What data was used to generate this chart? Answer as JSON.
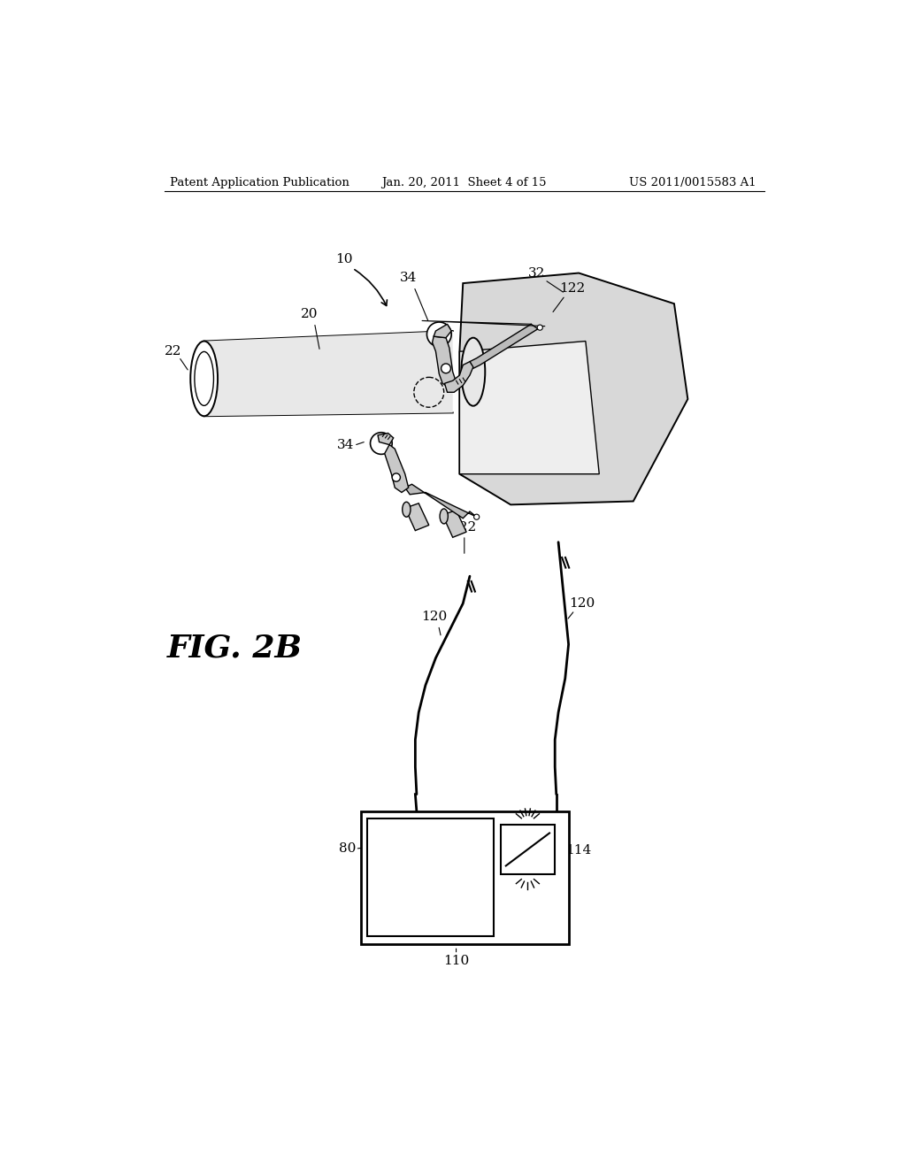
{
  "bg_color": "#ffffff",
  "header_left": "Patent Application Publication",
  "header_center": "Jan. 20, 2011  Sheet 4 of 15",
  "header_right": "US 2011/0015583 A1",
  "fig_label": "FIG. 2B",
  "tube_gray": "#e8e8e8",
  "body_gray": "#d8d8d8",
  "clip_gray": "#c8c8c8",
  "dark_gray": "#888888"
}
